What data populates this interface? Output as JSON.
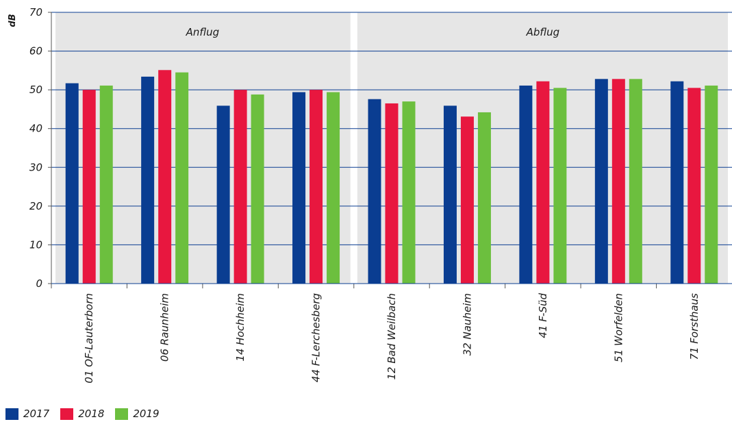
{
  "chart_data": {
    "type": "bar",
    "ylabel": "dB",
    "ylim": [
      0,
      70
    ],
    "yticks": [
      0,
      10,
      20,
      30,
      40,
      50,
      60,
      70
    ],
    "grid": true,
    "legend_position": "bottom-left",
    "categories": [
      "01 OF-Lauterborn",
      "06 Raunheim",
      "14 Hochheim",
      "44 F-Lerchesberg",
      "12 Bad Weilbach",
      "32 Nauheim",
      "41 F-Süd",
      "51 Worfelden",
      "71 Forsthaus"
    ],
    "groups": [
      {
        "label": "Anflug",
        "start": 0,
        "end": 3
      },
      {
        "label": "Abflug",
        "start": 4,
        "end": 8
      }
    ],
    "series": [
      {
        "name": "2017",
        "color": "#0a3d91",
        "values": [
          51.7,
          53.4,
          45.9,
          49.4,
          47.6,
          45.9,
          51.1,
          52.8,
          52.2
        ]
      },
      {
        "name": "2018",
        "color": "#e8173f",
        "values": [
          50.0,
          55.1,
          50.0,
          50.0,
          46.5,
          43.1,
          52.2,
          52.8,
          50.5
        ]
      },
      {
        "name": "2019",
        "color": "#6cbf3e",
        "values": [
          51.1,
          54.5,
          48.8,
          49.4,
          47.0,
          44.2,
          50.5,
          52.8,
          51.1
        ]
      }
    ]
  }
}
